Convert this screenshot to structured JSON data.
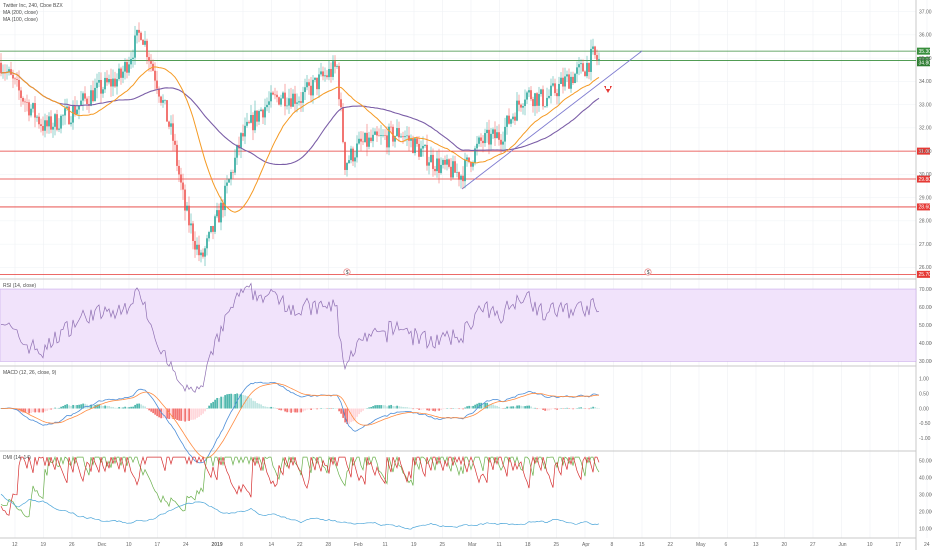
{
  "colors": {
    "up": "#26a69a",
    "down": "#ef5350",
    "ma200": "#7b5ea7",
    "ma100": "#f59a23",
    "hline_red": "#e53935",
    "hline_green": "#388e3c",
    "trend": "#7e7bd0",
    "rsi_band": "#f1e3fb",
    "rsi": "#8e6fb2",
    "macd": "#4f8fd8",
    "signal": "#ff8c42",
    "dmi_plus": "#6ab04c",
    "dmi_minus": "#d63031",
    "adx": "#4da6d9"
  },
  "main": {
    "legend": [
      "Twitter Inc, 240, Cboe BZX",
      "MA (200, close)",
      "MA (100, close)"
    ],
    "price_ticks": [
      "37.00",
      "36.00",
      "35.00",
      "34.00",
      "33.00",
      "32.00",
      "31.00",
      "30.00",
      "29.00",
      "28.00",
      "27.00",
      "26.00"
    ],
    "hlines": [
      {
        "price": 35.3,
        "color": "green",
        "label": "35.30"
      },
      {
        "price": 34.9,
        "color": "green",
        "label": "34.90"
      },
      {
        "price": 31.0,
        "color": "red",
        "label": "31.00"
      },
      {
        "price": 29.8,
        "color": "red",
        "label": "29.80"
      },
      {
        "price": 28.6,
        "color": "red",
        "label": "28.60"
      },
      {
        "price": 25.7,
        "color": "red",
        "label": "25.70"
      }
    ],
    "last_price": {
      "price": 34.8,
      "label": "34.80"
    },
    "events": [
      "$",
      "$"
    ]
  },
  "rsi": {
    "legend": "RSI (14, close)",
    "ticks": [
      "70.0000",
      "60.0000",
      "50.0000",
      "40.0000",
      "30.0000"
    ]
  },
  "macd": {
    "legend": "MACD (12, 26, close, 9)",
    "ticks": [
      "1.00",
      "0.50",
      "0.00",
      "-0.50",
      "-1.00"
    ]
  },
  "dmi": {
    "legend": "DMI (14, 14)",
    "ticks": [
      "50.0000",
      "40.0000",
      "30.0000",
      "20.0000",
      "10.0000"
    ]
  },
  "time_axis": [
    "12",
    "19",
    "26",
    "Dec",
    "10",
    "17",
    "24",
    "2019",
    "8",
    "14",
    "22",
    "28",
    "Feb",
    "11",
    "19",
    "25",
    "Mar",
    "11",
    "18",
    "25",
    "Apr",
    "8",
    "15",
    "22",
    "May",
    "6",
    "13",
    "20",
    "27",
    "Jun",
    "10",
    "17",
    "24"
  ],
  "chart_data": [
    {
      "type": "candlestick",
      "title": "Twitter Inc, 240, Cboe BZX",
      "x": "240-minute bars, Nov 2018 – Apr 2019",
      "ylim": [
        25.5,
        37.5
      ],
      "series": [
        {
          "name": "MA (200, close)"
        },
        {
          "name": "MA (100, close)"
        }
      ],
      "horizontal_levels": [
        35.3,
        34.9,
        31.0,
        29.8,
        28.6,
        25.7
      ],
      "approx_close_path": [
        [
          0,
          34.8
        ],
        [
          10,
          33.4
        ],
        [
          22,
          32.0
        ],
        [
          34,
          32.6
        ],
        [
          46,
          33.5
        ],
        [
          60,
          34.2
        ],
        [
          70,
          36.2
        ],
        [
          78,
          34.0
        ],
        [
          86,
          31.5
        ],
        [
          92,
          28.5
        ],
        [
          100,
          26.3
        ],
        [
          110,
          28.5
        ],
        [
          120,
          31.5
        ],
        [
          130,
          32.8
        ],
        [
          140,
          33.4
        ],
        [
          150,
          33.3
        ],
        [
          160,
          34.1
        ],
        [
          168,
          34.6
        ],
        [
          172,
          30.5
        ],
        [
          180,
          31.3
        ],
        [
          190,
          31.5
        ],
        [
          200,
          31.8
        ],
        [
          210,
          31.0
        ],
        [
          220,
          30.3
        ],
        [
          230,
          30.0
        ],
        [
          240,
          31.4
        ],
        [
          250,
          31.7
        ],
        [
          262,
          33.5
        ],
        [
          272,
          33.2
        ],
        [
          282,
          34.0
        ],
        [
          292,
          34.6
        ],
        [
          296,
          35.1
        ],
        [
          300,
          34.8
        ]
      ]
    },
    {
      "type": "line",
      "title": "RSI (14, close)",
      "ylim": [
        28,
        75
      ],
      "band": [
        30,
        70
      ]
    },
    {
      "type": "bar",
      "title": "MACD (12, 26, close, 9)",
      "ylim": [
        -1.4,
        1.4
      ]
    },
    {
      "type": "line",
      "title": "DMI (14, 14)",
      "ylim": [
        5,
        55
      ]
    }
  ]
}
